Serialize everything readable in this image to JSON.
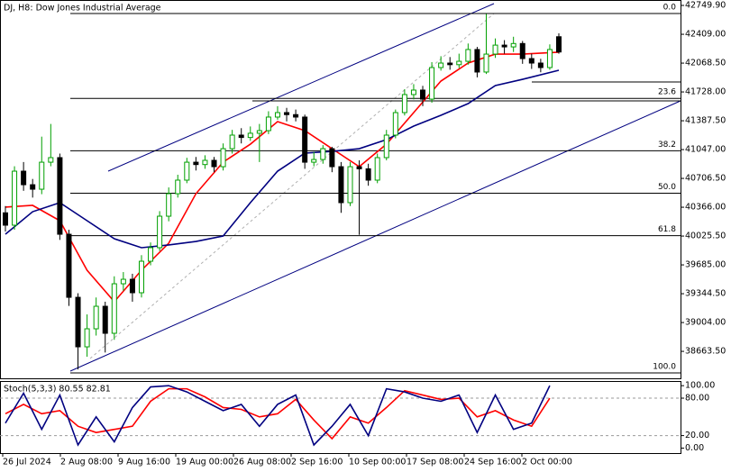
{
  "chart_data": {
    "type": "candlestick",
    "title": "DJ, H8: Dow Jones Industrial Average",
    "ylim": [
      38345,
      42814
    ],
    "yticks": [
      {
        "value": 42749.9,
        "label": "42749.90"
      },
      {
        "value": 42409,
        "label": "42409.00"
      },
      {
        "value": 42068.5,
        "label": "42068.50"
      },
      {
        "value": 41728,
        "label": "41728.00"
      },
      {
        "value": 41387.5,
        "label": "41387.50"
      },
      {
        "value": 41047,
        "label": "41047.00"
      },
      {
        "value": 40706.5,
        "label": "40706.50"
      },
      {
        "value": 40366,
        "label": "40366.00"
      },
      {
        "value": 40025.5,
        "label": "40025.50"
      },
      {
        "value": 39685,
        "label": "39685.00"
      },
      {
        "value": 39344.5,
        "label": "39344.50"
      },
      {
        "value": 39004,
        "label": "39004.00"
      },
      {
        "value": 38663.5,
        "label": "38663.50"
      }
    ],
    "x_labels": [
      "26 Jul 2024",
      "2 Aug 08:00",
      "9 Aug 16:00",
      "19 Aug 00:00",
      "26 Aug 08:00",
      "2 Sep 16:00",
      "10 Sep 00:00",
      "17 Sep 08:00",
      "24 Sep 16:00",
      "2 Oct 00:00"
    ],
    "up_color": "#00a000",
    "down_color": "#000000",
    "candles": {
      "open": [
        40300,
        40154,
        40792,
        40632,
        40579,
        40898,
        40952,
        40047,
        39302,
        38717,
        38930,
        39196,
        38877,
        39462,
        39515,
        39356,
        39728,
        39888,
        40260,
        40526,
        40686,
        40898,
        40870,
        40920,
        40845,
        41058,
        41218,
        41190,
        41240,
        41271,
        41431,
        41484,
        41460,
        41431,
        40898,
        40930,
        41058,
        40845,
        40420,
        40845,
        40820,
        40686,
        40952,
        41218,
        41484,
        41697,
        41750,
        41643,
        42016,
        42069,
        42050,
        42090,
        42229,
        41963,
        42175,
        42281,
        42260,
        42300,
        42122,
        42069,
        42016,
        42380
      ],
      "high": [
        40380,
        40850,
        40900,
        40700,
        41200,
        41350,
        41000,
        40100,
        39350,
        39100,
        39300,
        39250,
        39550,
        39600,
        39580,
        39800,
        39950,
        40320,
        40600,
        40750,
        40950,
        40960,
        40980,
        40960,
        41120,
        41280,
        41300,
        41320,
        41350,
        41500,
        41560,
        41540,
        41520,
        41460,
        41020,
        41100,
        41080,
        40900,
        40900,
        40920,
        40880,
        41000,
        41280,
        41520,
        41760,
        41820,
        41800,
        42080,
        42150,
        42140,
        42180,
        42300,
        42260,
        42650,
        42360,
        42340,
        42380,
        42330,
        42180,
        42120,
        42290,
        42420
      ],
      "low": [
        40080,
        40100,
        40560,
        40480,
        40520,
        40850,
        39980,
        39200,
        38450,
        38600,
        38850,
        38650,
        38800,
        39380,
        39250,
        39300,
        39680,
        39850,
        40200,
        40480,
        40650,
        40800,
        40820,
        40780,
        40800,
        41000,
        41120,
        41150,
        40900,
        41230,
        41400,
        41380,
        41380,
        40820,
        40850,
        40880,
        40780,
        40300,
        40380,
        40040,
        40620,
        40650,
        40920,
        41180,
        41450,
        41640,
        41560,
        41600,
        41980,
        41990,
        42010,
        42050,
        41900,
        41940,
        42130,
        42180,
        42200,
        42060,
        42000,
        41960,
        41990,
        42180
      ],
      "close": [
        40154,
        40792,
        40632,
        40579,
        40898,
        40952,
        40047,
        39302,
        38717,
        38930,
        39196,
        38877,
        39462,
        39515,
        39356,
        39728,
        39888,
        40260,
        40526,
        40686,
        40898,
        40870,
        40920,
        40845,
        41058,
        41218,
        41190,
        41240,
        41271,
        41431,
        41484,
        41460,
        41431,
        40898,
        40930,
        41058,
        40845,
        40420,
        40845,
        40820,
        40686,
        40952,
        41218,
        41484,
        41697,
        41750,
        41643,
        42016,
        42069,
        42050,
        42090,
        42229,
        41963,
        42175,
        42281,
        42260,
        42300,
        42122,
        42069,
        42016,
        42229,
        42200
      ]
    },
    "moving_averages": [
      {
        "color": "#ff0000",
        "x": [
          0,
          3,
          6,
          9,
          12,
          15,
          18,
          21,
          24,
          27,
          30,
          33,
          36,
          39,
          42,
          45,
          48,
          51,
          54,
          57,
          61
        ],
        "values": [
          40367,
          40388,
          40207,
          39622,
          39250,
          39622,
          39941,
          40526,
          40899,
          41111,
          41377,
          41271,
          41058,
          40845,
          41111,
          41484,
          41856,
          42069,
          42175,
          42175,
          42197
        ]
      },
      {
        "color": "#000080",
        "x": [
          0,
          3,
          6,
          9,
          12,
          15,
          18,
          21,
          24,
          27,
          30,
          33,
          36,
          39,
          42,
          45,
          48,
          51,
          54,
          57,
          61
        ],
        "values": [
          40047,
          40313,
          40420,
          40207,
          39994,
          39888,
          39920,
          39962,
          40026,
          40420,
          40792,
          41005,
          41026,
          41058,
          41164,
          41324,
          41452,
          41590,
          41803,
          41877,
          41984
        ]
      }
    ],
    "fibonacci": {
      "high": 42654,
      "low": 38409,
      "levels": [
        {
          "value": 0,
          "label": "0.0"
        },
        23.6,
        38.2,
        {
          "value": 50,
          "label": "50.0"
        },
        61.8,
        {
          "value": 100,
          "label": "100.0"
        }
      ]
    },
    "stochastic": {
      "label": "Stoch(5,3,3) 80.55 82.81",
      "ylim": [
        -8,
        106
      ],
      "yticks": [
        {
          "value": 100,
          "label": "100.00"
        },
        {
          "value": 80,
          "label": "80.00"
        },
        {
          "value": 20,
          "label": "20.00"
        },
        {
          "value": 0,
          "label": "0.00"
        }
      ],
      "x": [
        0,
        2,
        4,
        6,
        8,
        10,
        12,
        14,
        16,
        18,
        20,
        22,
        24,
        26,
        28,
        30,
        32,
        34,
        36,
        38,
        40,
        42,
        44,
        46,
        48,
        50,
        52,
        54,
        56,
        58,
        60
      ],
      "main": {
        "color": "#000080",
        "values": [
          40,
          88,
          30,
          85,
          5,
          50,
          10,
          65,
          98,
          100,
          90,
          75,
          60,
          70,
          35,
          70,
          85,
          5,
          35,
          70,
          20,
          95,
          90,
          80,
          75,
          85,
          25,
          85,
          30,
          40,
          100
        ]
      },
      "signal": {
        "color": "#ff0000",
        "values": [
          55,
          70,
          55,
          60,
          35,
          25,
          30,
          35,
          75,
          95,
          95,
          82,
          65,
          62,
          50,
          55,
          78,
          45,
          15,
          50,
          40,
          65,
          92,
          85,
          78,
          80,
          50,
          60,
          45,
          35,
          80
        ]
      }
    }
  }
}
